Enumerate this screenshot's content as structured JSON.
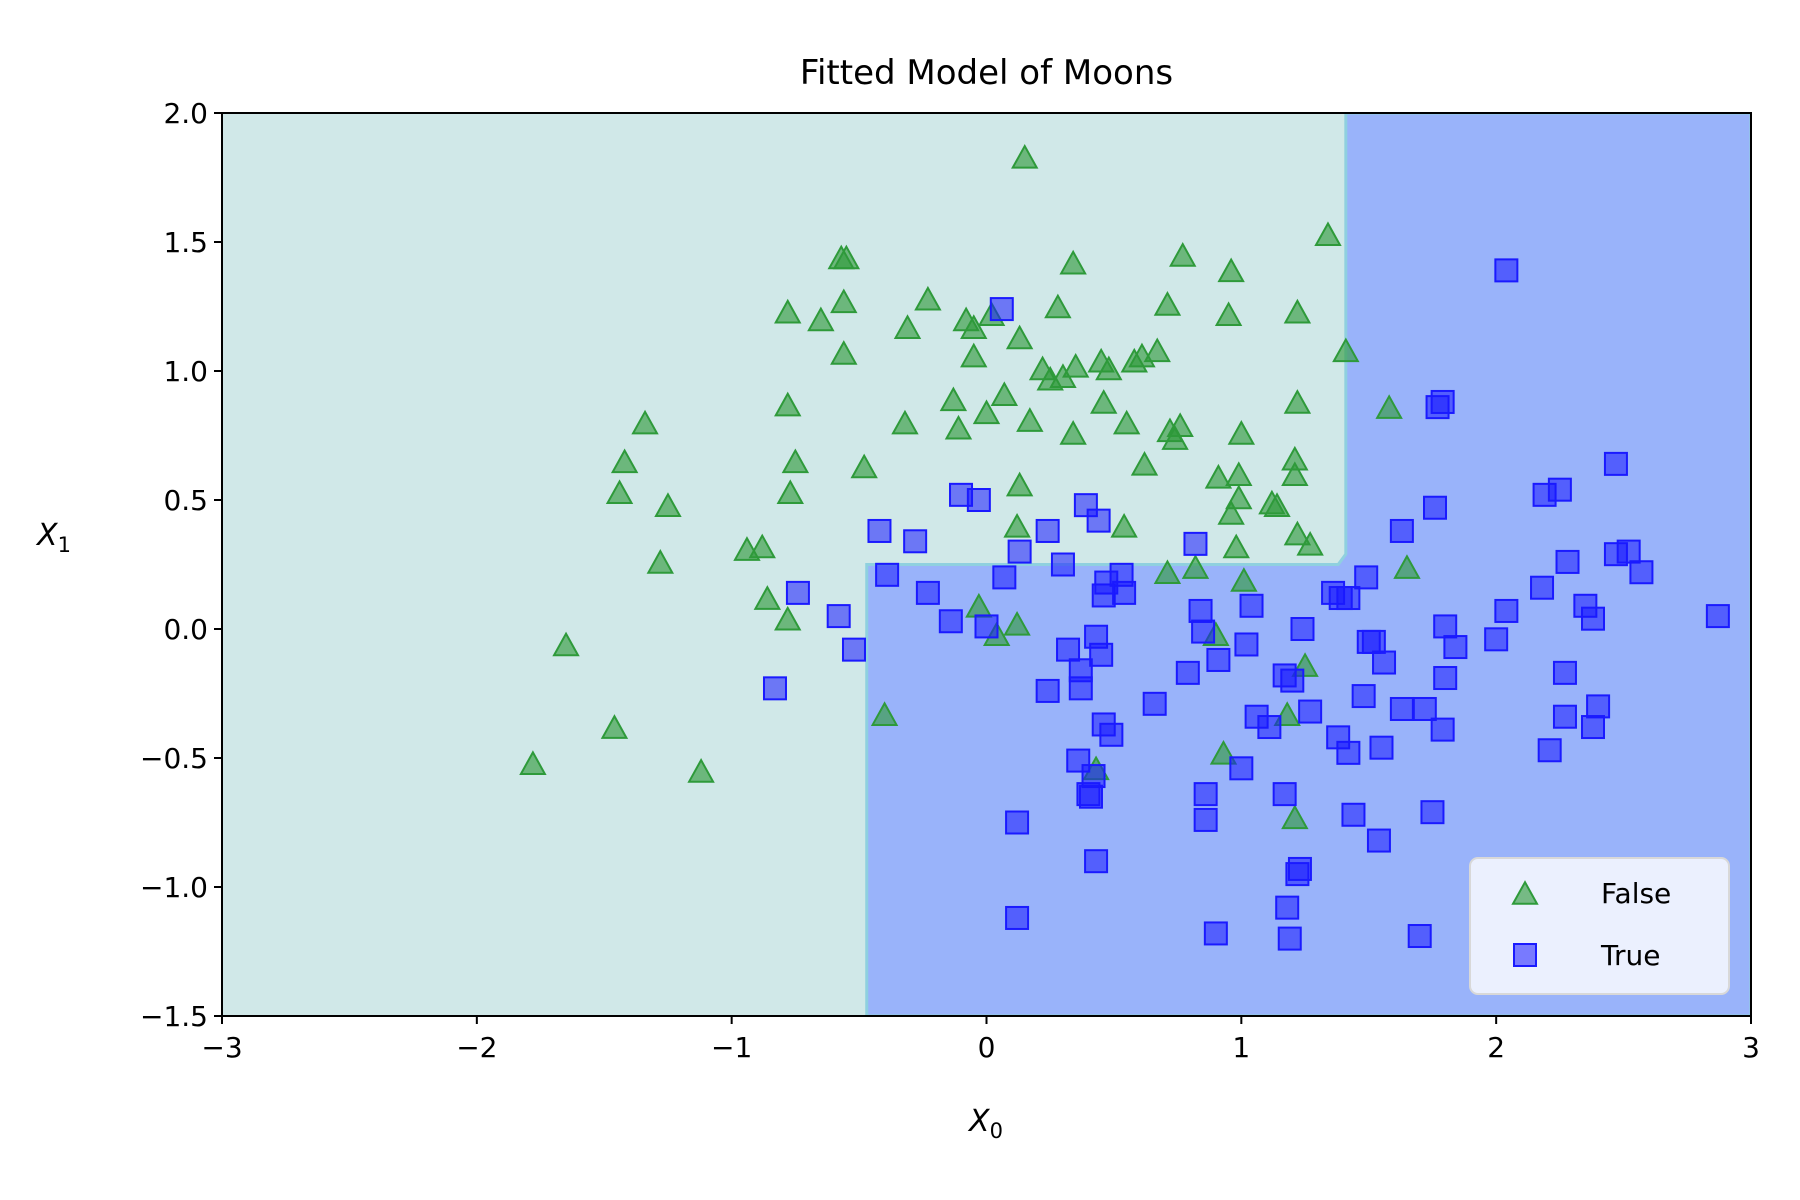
{
  "chart_data": {
    "type": "scatter",
    "title": "Fitted Model of Moons",
    "xlabel": {
      "main": "X",
      "sub": "0"
    },
    "ylabel": {
      "main": "X",
      "sub": "1"
    },
    "xlim": [
      -3,
      3
    ],
    "ylim": [
      -1.5,
      2.0
    ],
    "xticks": [
      -3,
      -2,
      -1,
      0,
      1,
      2,
      3
    ],
    "yticks": [
      -1.5,
      -1.0,
      -0.5,
      0.0,
      0.5,
      1.0,
      1.5,
      2.0
    ],
    "xtick_labels": [
      "−3",
      "−2",
      "−1",
      "0",
      "1",
      "2",
      "3"
    ],
    "ytick_labels": [
      "−1.5",
      "−1.0",
      "−0.5",
      "0.0",
      "0.5",
      "1.0",
      "1.5",
      "2.0"
    ],
    "grid": false,
    "legend_position": "bottom-right",
    "colors": {
      "false_region": "#d0e8e8",
      "true_region": "#99b3fa",
      "false_marker": "#2e9a3a",
      "true_marker": "#1a1aff"
    },
    "decision_boundary": {
      "true_region_polygon": [
        [
          -0.47,
          -1.5
        ],
        [
          -0.47,
          0.25
        ],
        [
          1.38,
          0.25
        ],
        [
          1.41,
          0.29
        ],
        [
          1.41,
          2.0
        ],
        [
          3.0,
          2.0
        ],
        [
          3.0,
          -1.5
        ]
      ]
    },
    "series": [
      {
        "name": "False",
        "marker": "triangle",
        "points": [
          [
            0.15,
            1.83
          ],
          [
            -0.57,
            1.44
          ],
          [
            -0.55,
            1.44
          ],
          [
            0.34,
            1.42
          ],
          [
            0.77,
            1.45
          ],
          [
            1.34,
            1.53
          ],
          [
            0.96,
            1.39
          ],
          [
            -0.78,
            1.23
          ],
          [
            -0.65,
            1.2
          ],
          [
            -0.56,
            1.27
          ],
          [
            -0.23,
            1.28
          ],
          [
            -0.31,
            1.17
          ],
          [
            -0.08,
            1.2
          ],
          [
            -0.05,
            1.17
          ],
          [
            0.02,
            1.22
          ],
          [
            0.28,
            1.25
          ],
          [
            0.71,
            1.26
          ],
          [
            0.95,
            1.22
          ],
          [
            1.22,
            1.23
          ],
          [
            -0.56,
            1.07
          ],
          [
            -0.05,
            1.06
          ],
          [
            0.13,
            1.13
          ],
          [
            0.22,
            1.01
          ],
          [
            0.25,
            0.97
          ],
          [
            0.35,
            1.02
          ],
          [
            0.45,
            1.04
          ],
          [
            0.48,
            1.01
          ],
          [
            0.58,
            1.04
          ],
          [
            0.61,
            1.06
          ],
          [
            0.67,
            1.08
          ],
          [
            1.41,
            1.08
          ],
          [
            -0.78,
            0.87
          ],
          [
            -0.13,
            0.89
          ],
          [
            0.0,
            0.84
          ],
          [
            0.07,
            0.91
          ],
          [
            0.17,
            0.81
          ],
          [
            0.3,
            0.98
          ],
          [
            -0.32,
            0.8
          ],
          [
            -0.11,
            0.78
          ],
          [
            0.46,
            0.88
          ],
          [
            0.55,
            0.8
          ],
          [
            0.34,
            0.76
          ],
          [
            0.72,
            0.77
          ],
          [
            0.74,
            0.74
          ],
          [
            0.76,
            0.79
          ],
          [
            1.0,
            0.76
          ],
          [
            1.22,
            0.88
          ],
          [
            1.58,
            0.86
          ],
          [
            -1.34,
            0.8
          ],
          [
            -1.42,
            0.65
          ],
          [
            -1.44,
            0.53
          ],
          [
            -1.25,
            0.48
          ],
          [
            -0.75,
            0.65
          ],
          [
            -0.77,
            0.53
          ],
          [
            -0.48,
            0.63
          ],
          [
            0.13,
            0.56
          ],
          [
            0.62,
            0.64
          ],
          [
            0.91,
            0.59
          ],
          [
            0.99,
            0.6
          ],
          [
            0.99,
            0.51
          ],
          [
            0.96,
            0.45
          ],
          [
            1.12,
            0.49
          ],
          [
            1.14,
            0.48
          ],
          [
            1.21,
            0.66
          ],
          [
            1.21,
            0.6
          ],
          [
            1.22,
            0.37
          ],
          [
            1.27,
            0.33
          ],
          [
            0.12,
            0.4
          ],
          [
            0.54,
            0.4
          ],
          [
            -0.94,
            0.31
          ],
          [
            -0.88,
            0.32
          ],
          [
            -1.28,
            0.26
          ],
          [
            0.98,
            0.32
          ],
          [
            0.71,
            0.22
          ],
          [
            0.82,
            0.24
          ],
          [
            1.01,
            0.19
          ],
          [
            1.65,
            0.24
          ],
          [
            -0.86,
            0.12
          ],
          [
            -0.78,
            0.04
          ],
          [
            -0.03,
            0.09
          ],
          [
            0.12,
            0.02
          ],
          [
            0.04,
            -0.02
          ],
          [
            0.9,
            -0.02
          ],
          [
            1.25,
            -0.14
          ],
          [
            -1.65,
            -0.06
          ],
          [
            -0.4,
            -0.33
          ],
          [
            1.18,
            -0.33
          ],
          [
            -1.46,
            -0.38
          ],
          [
            -1.78,
            -0.52
          ],
          [
            -1.12,
            -0.55
          ],
          [
            0.93,
            -0.48
          ],
          [
            0.43,
            -0.54
          ],
          [
            1.21,
            -0.73
          ]
        ]
      },
      {
        "name": "True",
        "marker": "square",
        "points": [
          [
            0.06,
            1.24
          ],
          [
            2.04,
            1.39
          ],
          [
            1.77,
            0.86
          ],
          [
            1.79,
            0.88
          ],
          [
            2.47,
            0.64
          ],
          [
            -0.1,
            0.52
          ],
          [
            -0.03,
            0.5
          ],
          [
            0.39,
            0.48
          ],
          [
            0.44,
            0.42
          ],
          [
            0.24,
            0.38
          ],
          [
            -0.42,
            0.38
          ],
          [
            -0.28,
            0.34
          ],
          [
            0.82,
            0.33
          ],
          [
            1.76,
            0.47
          ],
          [
            2.19,
            0.52
          ],
          [
            2.25,
            0.54
          ],
          [
            1.63,
            0.38
          ],
          [
            2.47,
            0.29
          ],
          [
            2.52,
            0.3
          ],
          [
            2.57,
            0.22
          ],
          [
            -0.39,
            0.21
          ],
          [
            0.13,
            0.3
          ],
          [
            0.3,
            0.25
          ],
          [
            0.53,
            0.21
          ],
          [
            0.07,
            0.2
          ],
          [
            -0.23,
            0.14
          ],
          [
            -0.74,
            0.14
          ],
          [
            0.46,
            0.13
          ],
          [
            0.47,
            0.18
          ],
          [
            0.54,
            0.14
          ],
          [
            0.84,
            0.07
          ],
          [
            1.04,
            0.09
          ],
          [
            1.36,
            0.14
          ],
          [
            1.39,
            0.12
          ],
          [
            1.42,
            0.12
          ],
          [
            1.49,
            0.2
          ],
          [
            2.28,
            0.26
          ],
          [
            2.18,
            0.16
          ],
          [
            2.35,
            0.09
          ],
          [
            2.38,
            0.04
          ],
          [
            2.87,
            0.05
          ],
          [
            -0.58,
            0.05
          ],
          [
            -0.52,
            -0.08
          ],
          [
            -0.14,
            0.03
          ],
          [
            0.0,
            0.01
          ],
          [
            0.85,
            -0.01
          ],
          [
            1.02,
            -0.06
          ],
          [
            1.24,
            0.0
          ],
          [
            1.5,
            -0.05
          ],
          [
            1.52,
            -0.05
          ],
          [
            1.8,
            0.01
          ],
          [
            1.84,
            -0.07
          ],
          [
            2.04,
            0.07
          ],
          [
            2.0,
            -0.04
          ],
          [
            0.32,
            -0.08
          ],
          [
            0.43,
            -0.03
          ],
          [
            0.45,
            -0.1
          ],
          [
            0.37,
            -0.16
          ],
          [
            0.37,
            -0.23
          ],
          [
            0.24,
            -0.24
          ],
          [
            0.79,
            -0.17
          ],
          [
            0.91,
            -0.12
          ],
          [
            1.17,
            -0.18
          ],
          [
            1.2,
            -0.2
          ],
          [
            1.56,
            -0.13
          ],
          [
            1.8,
            -0.19
          ],
          [
            2.27,
            -0.17
          ],
          [
            -0.83,
            -0.23
          ],
          [
            0.66,
            -0.29
          ],
          [
            1.06,
            -0.34
          ],
          [
            1.11,
            -0.38
          ],
          [
            1.27,
            -0.32
          ],
          [
            1.48,
            -0.26
          ],
          [
            1.63,
            -0.31
          ],
          [
            1.72,
            -0.31
          ],
          [
            1.79,
            -0.39
          ],
          [
            2.27,
            -0.34
          ],
          [
            2.4,
            -0.3
          ],
          [
            2.38,
            -0.38
          ],
          [
            0.46,
            -0.37
          ],
          [
            0.49,
            -0.41
          ],
          [
            0.36,
            -0.51
          ],
          [
            1.38,
            -0.42
          ],
          [
            1.42,
            -0.48
          ],
          [
            1.55,
            -0.46
          ],
          [
            2.21,
            -0.47
          ],
          [
            0.42,
            -0.57
          ],
          [
            1.0,
            -0.54
          ],
          [
            0.4,
            -0.64
          ],
          [
            0.41,
            -0.65
          ],
          [
            0.86,
            -0.64
          ],
          [
            0.86,
            -0.74
          ],
          [
            1.17,
            -0.64
          ],
          [
            1.44,
            -0.72
          ],
          [
            1.75,
            -0.71
          ],
          [
            0.12,
            -0.75
          ],
          [
            1.54,
            -0.82
          ],
          [
            0.43,
            -0.9
          ],
          [
            1.23,
            -0.93
          ],
          [
            1.22,
            -0.95
          ],
          [
            0.12,
            -1.12
          ],
          [
            1.18,
            -1.08
          ],
          [
            0.9,
            -1.18
          ],
          [
            1.19,
            -1.2
          ],
          [
            1.7,
            -1.19
          ]
        ]
      }
    ]
  }
}
